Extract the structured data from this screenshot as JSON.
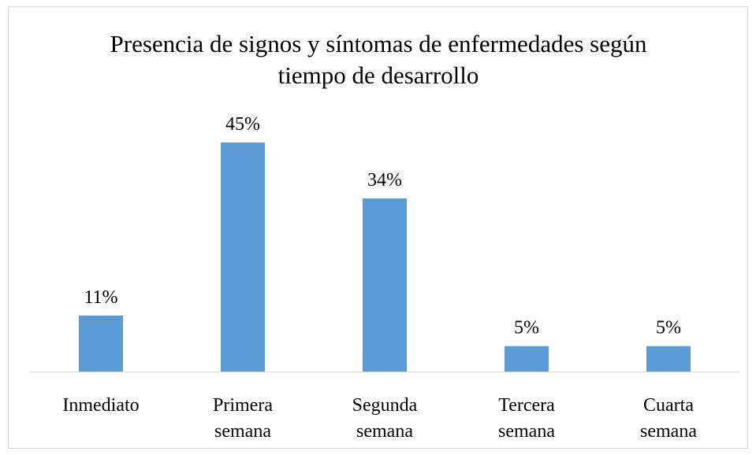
{
  "chart_data": {
    "type": "bar",
    "title": "Presencia de signos y síntomas de enfermedades según tiempo de desarrollo",
    "categories": [
      "Inmediato",
      "Primera semana",
      "Segunda semana",
      "Tercera semana",
      "Cuarta semana"
    ],
    "values": [
      11,
      45,
      34,
      5,
      5
    ],
    "value_labels": [
      "11%",
      "45%",
      "34%",
      "5%",
      "5%"
    ],
    "color": "#5b9bd5"
  }
}
